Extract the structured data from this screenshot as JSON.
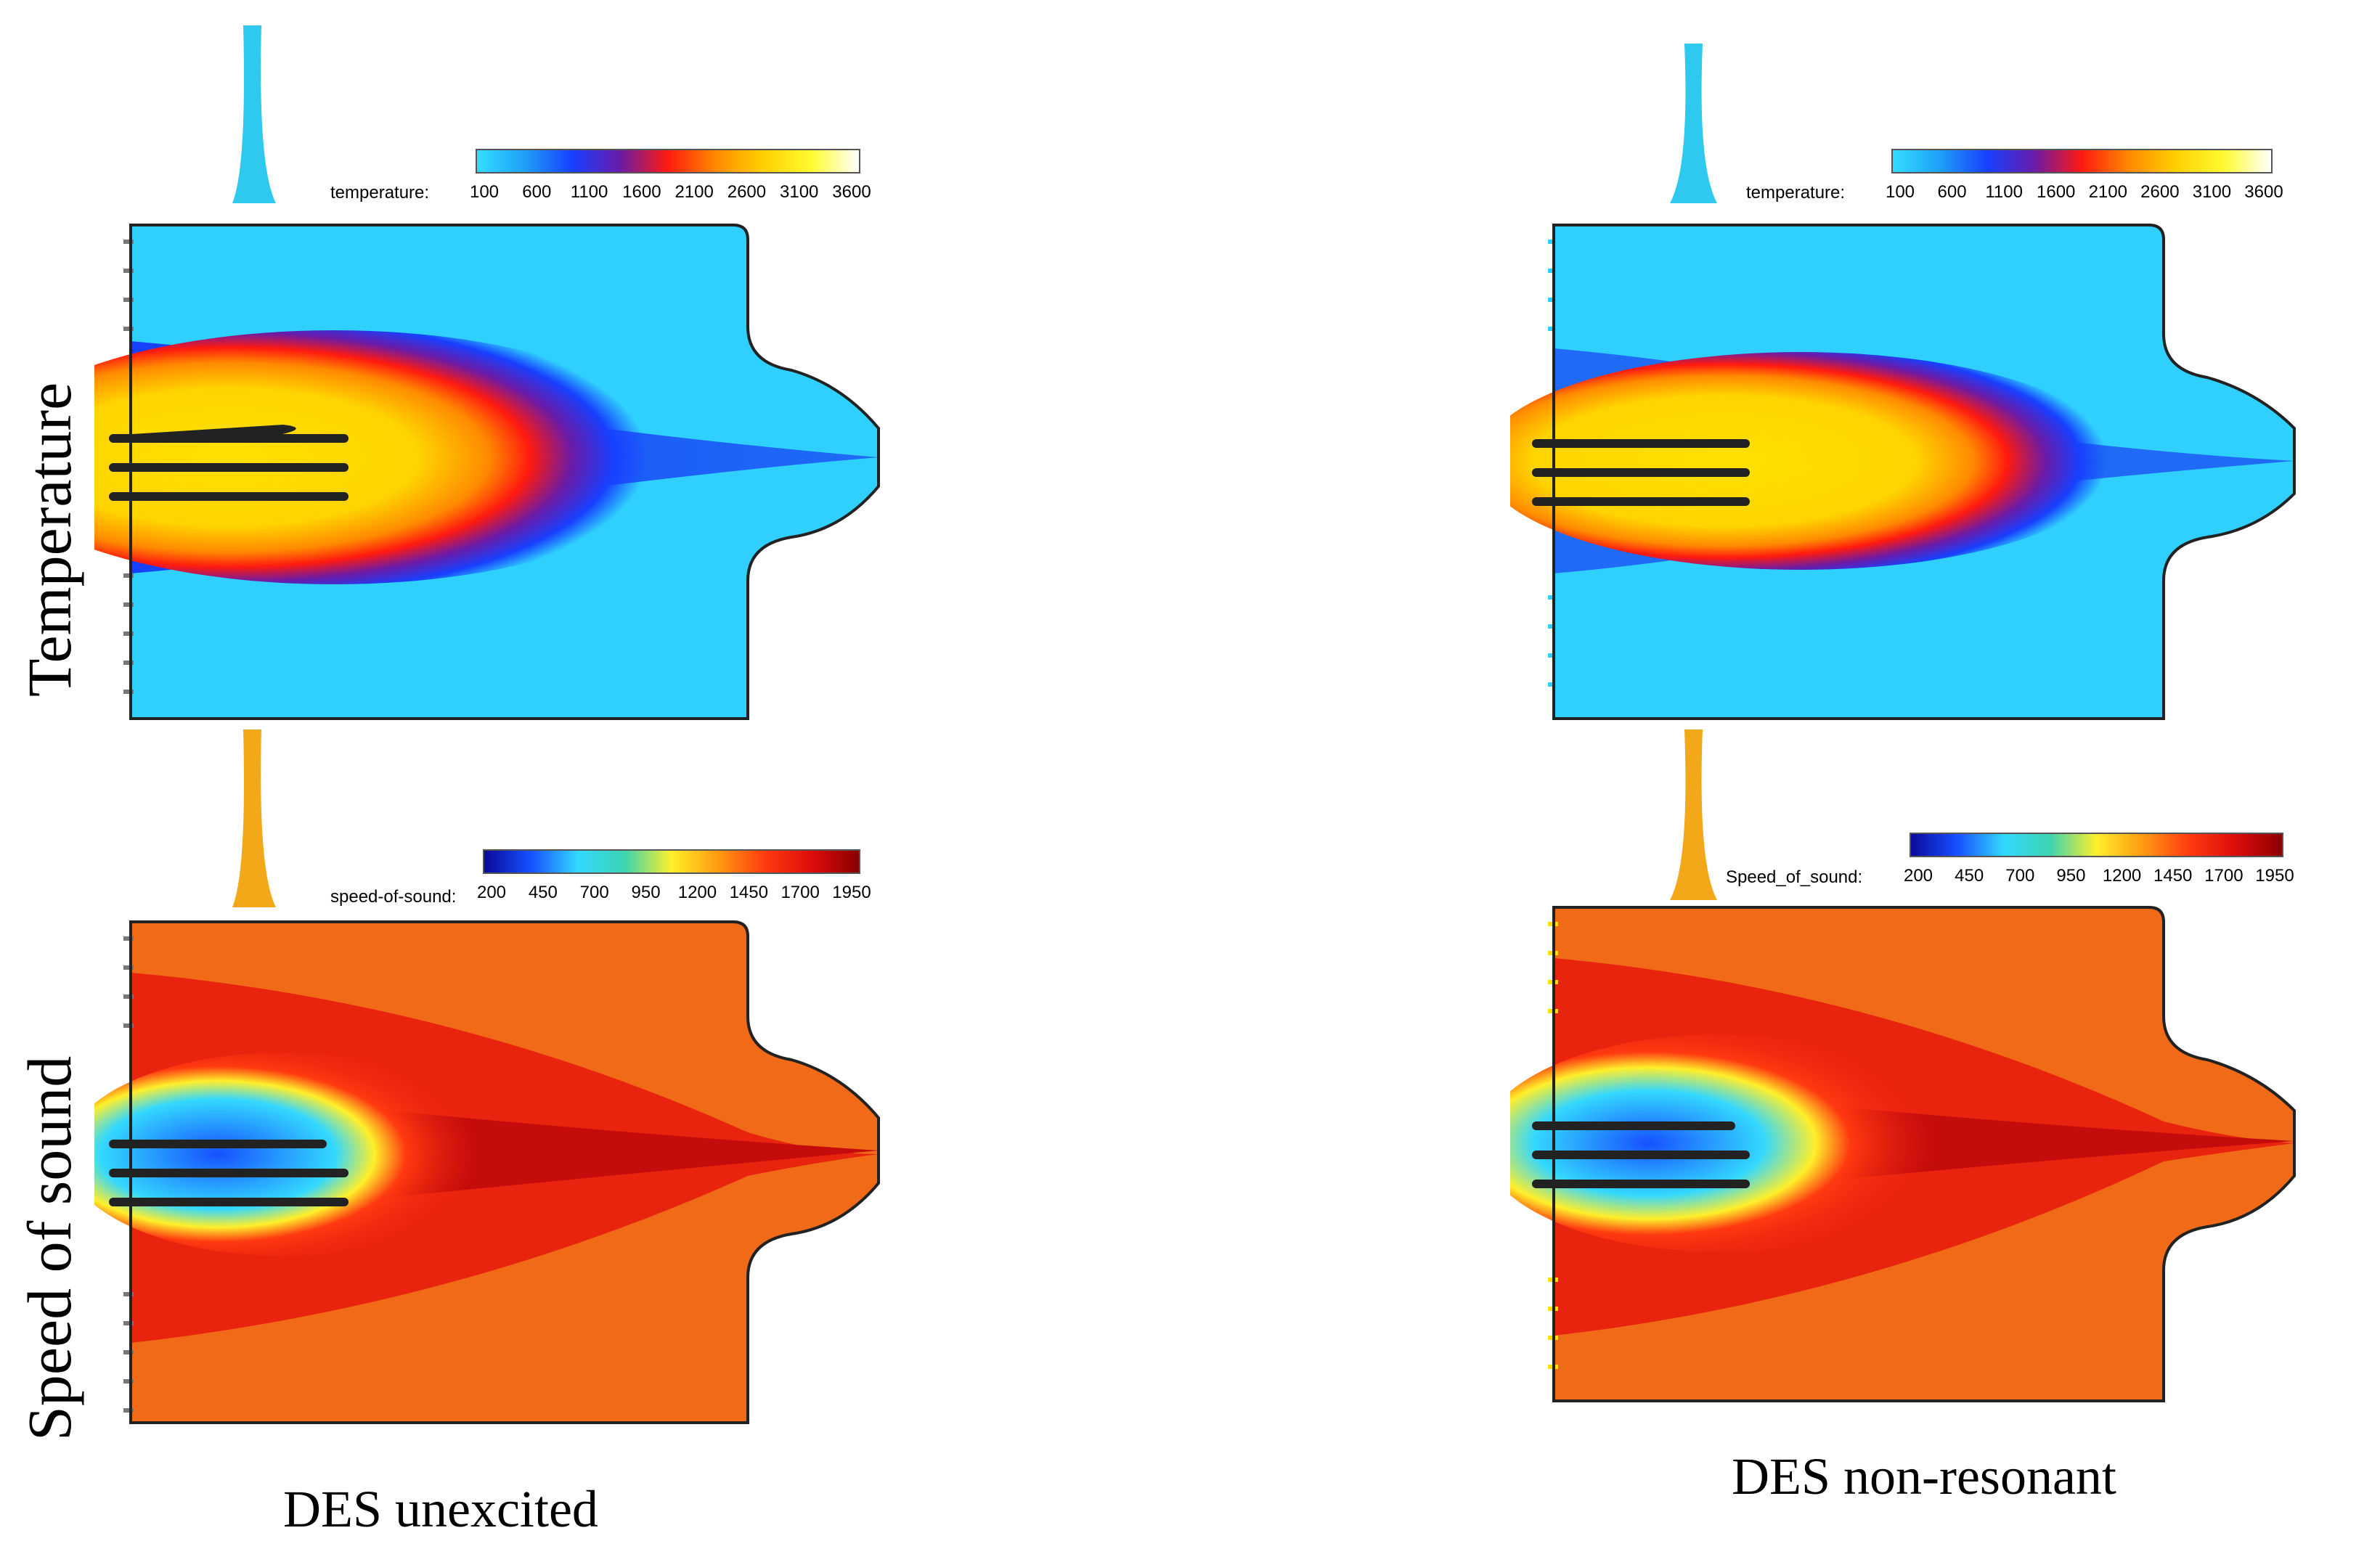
{
  "row_labels": {
    "temperature": "Temperature",
    "speed_of_sound": "Speed of sound"
  },
  "captions": {
    "left": "DES unexcited",
    "right": "DES non-resonant"
  },
  "panels": {
    "temp_left": {
      "colorbar_label": "temperature:",
      "ticks": [
        "100",
        "600",
        "1100",
        "1600",
        "2100",
        "2600",
        "3100",
        "3600"
      ]
    },
    "temp_right": {
      "colorbar_label": "temperature:",
      "ticks": [
        "100",
        "600",
        "1100",
        "1600",
        "2100",
        "2600",
        "3100",
        "3600"
      ]
    },
    "sos_left": {
      "colorbar_label": "speed-of-sound:",
      "ticks": [
        "200",
        "450",
        "700",
        "950",
        "1200",
        "1450",
        "1700",
        "1950"
      ]
    },
    "sos_right": {
      "colorbar_label": "Speed_of_sound:",
      "ticks": [
        "200",
        "450",
        "700",
        "950",
        "1200",
        "1450",
        "1700",
        "1950"
      ]
    }
  },
  "colormaps": {
    "temperature": [
      "#33ddff",
      "#1f9ff7",
      "#1740ff",
      "#6a1ba8",
      "#ff1a0f",
      "#ff8a00",
      "#ffd000",
      "#fffb30",
      "#ffffff"
    ],
    "speed_of_sound": [
      "#0a0a9a",
      "#1750ff",
      "#33d8ff",
      "#3cd4b0",
      "#ffef2a",
      "#ff9a10",
      "#ff3a10",
      "#dd0c0c",
      "#8a0000"
    ]
  }
}
